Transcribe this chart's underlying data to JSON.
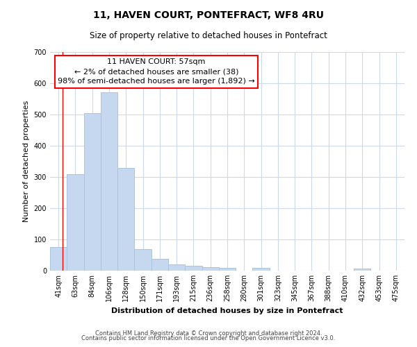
{
  "title": "11, HAVEN COURT, PONTEFRACT, WF8 4RU",
  "subtitle": "Size of property relative to detached houses in Pontefract",
  "xlabel": "Distribution of detached houses by size in Pontefract",
  "ylabel": "Number of detached properties",
  "categories": [
    "41sqm",
    "63sqm",
    "84sqm",
    "106sqm",
    "128sqm",
    "150sqm",
    "171sqm",
    "193sqm",
    "215sqm",
    "236sqm",
    "258sqm",
    "280sqm",
    "301sqm",
    "323sqm",
    "345sqm",
    "367sqm",
    "388sqm",
    "410sqm",
    "432sqm",
    "453sqm",
    "475sqm"
  ],
  "values": [
    75,
    310,
    505,
    572,
    328,
    68,
    38,
    20,
    15,
    12,
    10,
    0,
    8,
    0,
    0,
    0,
    0,
    0,
    6,
    0,
    0
  ],
  "bar_color": "#c5d8ef",
  "bar_edge_color": "#a8c4e0",
  "annotation_title": "11 HAVEN COURT: 57sqm",
  "annotation_line1": "← 2% of detached houses are smaller (38)",
  "annotation_line2": "98% of semi-detached houses are larger (1,892) →",
  "red_line_x": 0.73,
  "ylim": [
    0,
    700
  ],
  "yticks": [
    0,
    100,
    200,
    300,
    400,
    500,
    600,
    700
  ],
  "footnote1": "Contains HM Land Registry data © Crown copyright and database right 2024.",
  "footnote2": "Contains public sector information licensed under the Open Government Licence v3.0.",
  "background_color": "#ffffff",
  "grid_color": "#ccd9ea",
  "title_fontsize": 10,
  "subtitle_fontsize": 8.5,
  "xlabel_fontsize": 8,
  "ylabel_fontsize": 8,
  "tick_fontsize": 7,
  "annot_fontsize": 8,
  "footnote_fontsize": 6
}
